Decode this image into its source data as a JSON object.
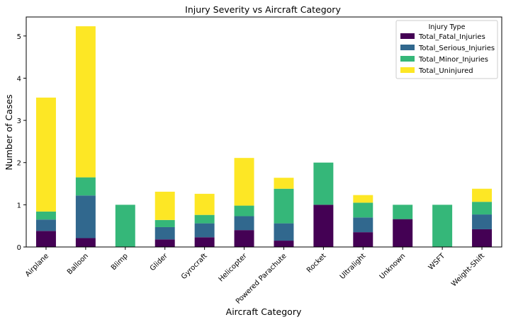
{
  "chart_data": {
    "type": "bar",
    "stacked": true,
    "title": "Injury Severity vs Aircraft Category",
    "xlabel": "Aircraft Category",
    "ylabel": "Number of Cases",
    "ylim": [
      0,
      5.45
    ],
    "yticks": [
      "0",
      "1",
      "2",
      "3",
      "4",
      "5"
    ],
    "categories": [
      "Airplane",
      "Balloon",
      "Blimp",
      "Glider",
      "Gyrocraft",
      "Helicopter",
      "Powered Parachute",
      "Rocket",
      "Ultralight",
      "Unknown",
      "WSFT",
      "Weight-Shift"
    ],
    "series": [
      {
        "name": "Total_Fatal_Injuries",
        "color": "#440154",
        "values": [
          0.38,
          0.21,
          0.0,
          0.18,
          0.23,
          0.4,
          0.15,
          1.0,
          0.35,
          0.66,
          0.0,
          0.42
        ]
      },
      {
        "name": "Total_Serious_Injuries",
        "color": "#31688e",
        "values": [
          0.27,
          1.01,
          0.0,
          0.29,
          0.33,
          0.33,
          0.41,
          0.0,
          0.35,
          0.0,
          0.0,
          0.35
        ]
      },
      {
        "name": "Total_Minor_Injuries",
        "color": "#35b779",
        "values": [
          0.19,
          0.43,
          1.0,
          0.17,
          0.2,
          0.25,
          0.82,
          1.0,
          0.35,
          0.34,
          1.0,
          0.3
        ]
      },
      {
        "name": "Total_Uninjured",
        "color": "#fde725",
        "values": [
          2.7,
          3.58,
          0.0,
          0.67,
          0.5,
          1.13,
          0.26,
          0.0,
          0.18,
          0.0,
          0.0,
          0.31
        ]
      }
    ],
    "legend": {
      "title": "Injury Type",
      "position": "top-right"
    },
    "grid": false
  }
}
